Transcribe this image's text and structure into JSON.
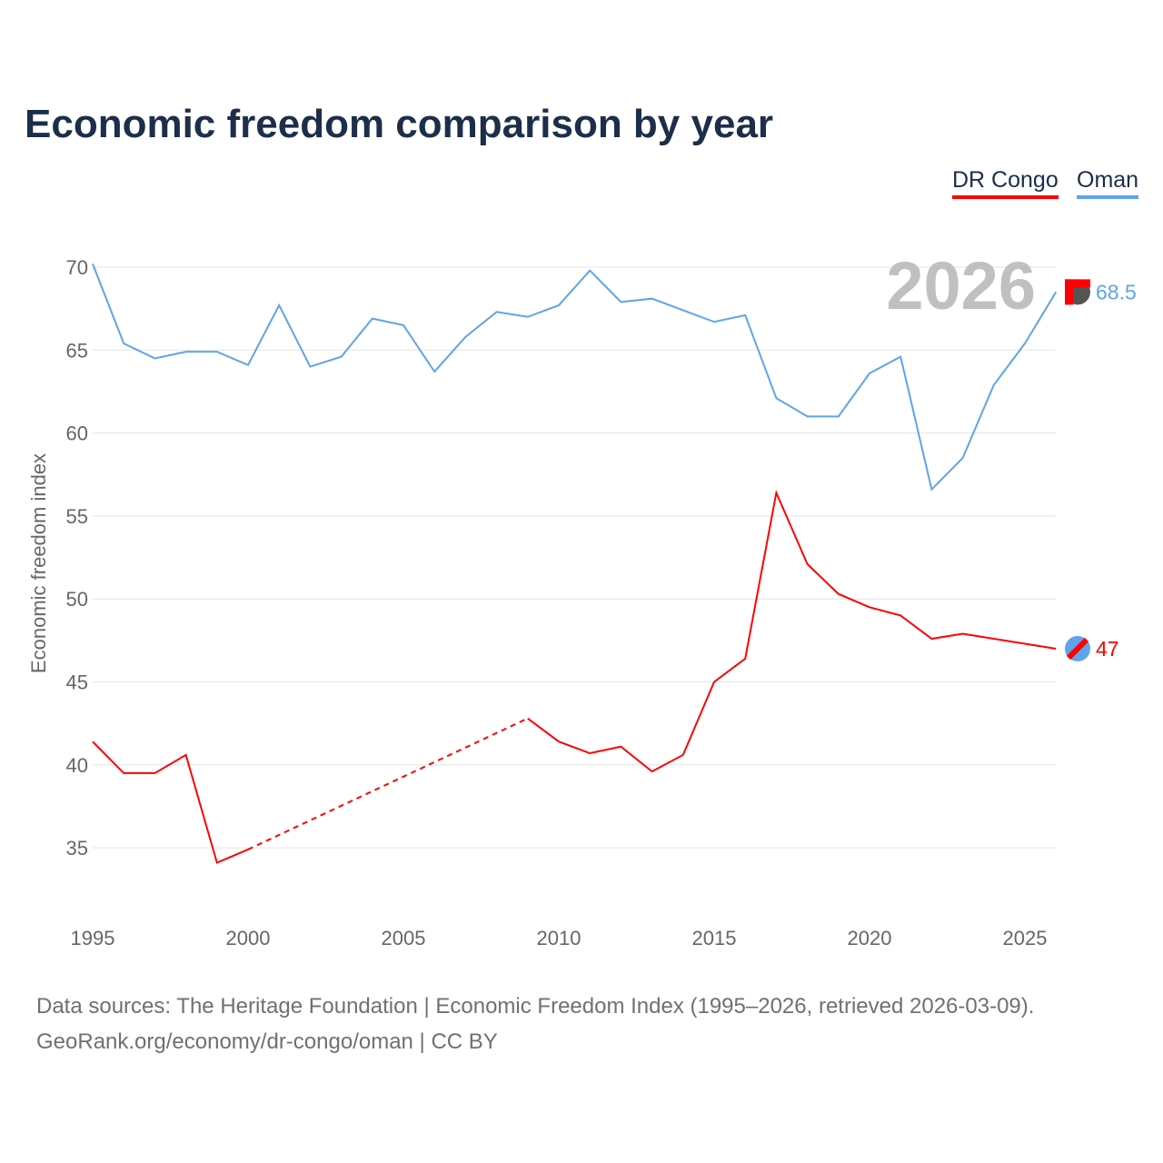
{
  "title": "Economic freedom comparison by year",
  "footer": {
    "line1": "Data sources: The Heritage Foundation | Economic Freedom Index (1995–2026, retrieved 2026-03-09).",
    "line2": "GeoRank.org/economy/dr-congo/oman | CC BY"
  },
  "chart_data": {
    "type": "line",
    "title": "Economic freedom comparison by year",
    "xlabel": "",
    "ylabel": "Economic freedom index",
    "year_label": "2026",
    "xlim": [
      1995,
      2026
    ],
    "ylim": [
      31,
      72
    ],
    "xticks": [
      1995,
      2000,
      2005,
      2010,
      2015,
      2020,
      2025
    ],
    "yticks": [
      35,
      40,
      45,
      50,
      55,
      60,
      65,
      70
    ],
    "grid": true,
    "legend_position": "top-right",
    "x": [
      1995,
      1996,
      1997,
      1998,
      1999,
      2000,
      2001,
      2002,
      2003,
      2004,
      2005,
      2006,
      2007,
      2008,
      2009,
      2010,
      2011,
      2012,
      2013,
      2014,
      2015,
      2016,
      2017,
      2018,
      2019,
      2020,
      2021,
      2022,
      2023,
      2024,
      2025,
      2026
    ],
    "series": [
      {
        "name": "DR Congo",
        "color": "#ff0000",
        "end_label": "47",
        "values": [
          41.4,
          39.5,
          39.5,
          40.6,
          34.1,
          34.9,
          null,
          null,
          null,
          null,
          null,
          null,
          null,
          null,
          42.8,
          41.4,
          40.7,
          41.1,
          39.6,
          40.6,
          45.0,
          46.4,
          56.4,
          52.1,
          50.3,
          49.5,
          49.0,
          47.6,
          47.9,
          47.6,
          47.3,
          47.0
        ]
      },
      {
        "name": "Oman",
        "color": "#5ea4ea",
        "end_label": "68.5",
        "values": [
          70.2,
          65.4,
          64.5,
          64.9,
          64.9,
          64.1,
          67.7,
          64.0,
          64.6,
          66.9,
          66.5,
          63.7,
          65.8,
          67.3,
          67.0,
          67.7,
          69.8,
          67.9,
          68.1,
          67.4,
          66.7,
          67.1,
          62.1,
          61.0,
          61.0,
          63.6,
          64.6,
          56.6,
          58.5,
          62.9,
          65.4,
          68.5
        ]
      }
    ]
  }
}
